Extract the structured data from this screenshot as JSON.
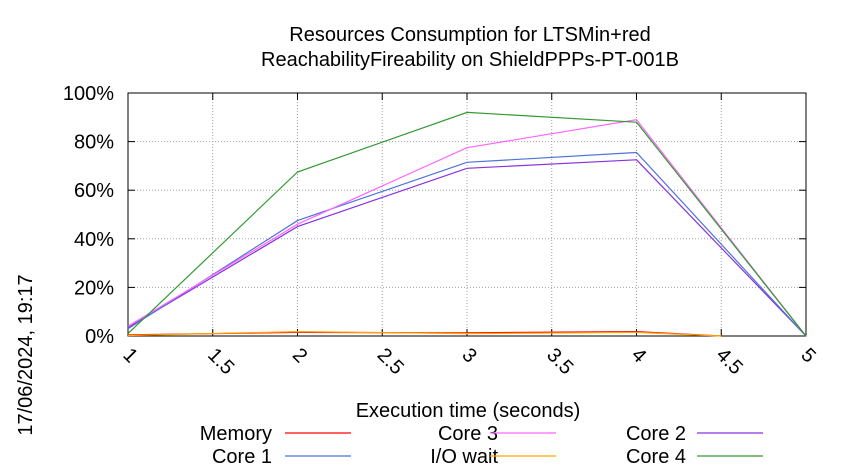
{
  "chart_data": {
    "type": "line",
    "title": [
      "Resources Consumption for LTSMin+red",
      "ReachabilityFireability on ShieldPPPs-PT-001B"
    ],
    "xlabel": "Execution time (seconds)",
    "ylabel": "",
    "side_label": "17/06/2024, 19:17",
    "xlim": [
      1,
      5
    ],
    "ylim": [
      0,
      100
    ],
    "x_ticks": [
      1,
      1.5,
      2,
      2.5,
      3,
      3.5,
      4,
      4.5,
      5
    ],
    "x_tick_labels": [
      "1",
      "1.5",
      "2",
      "2.5",
      "3",
      "3.5",
      "4",
      "4.5",
      "5"
    ],
    "y_ticks": [
      0,
      20,
      40,
      60,
      80,
      100
    ],
    "y_tick_labels": [
      "0%",
      "20%",
      "40%",
      "60%",
      "80%",
      "100%"
    ],
    "grid": true,
    "legend_position": "bottom",
    "series": [
      {
        "name": "Memory",
        "color": "#ff0000",
        "x": [
          1,
          2,
          3,
          4,
          4.5
        ],
        "y": [
          0.5,
          1.5,
          1.3,
          1.8,
          0
        ]
      },
      {
        "name": "Core 1",
        "color": "#4d73d9",
        "x": [
          1,
          2,
          3,
          4,
          5
        ],
        "y": [
          3,
          47.5,
          71.5,
          75.5,
          0
        ]
      },
      {
        "name": "Core 3",
        "color": "#ff66ff",
        "x": [
          1,
          2,
          3,
          4,
          5
        ],
        "y": [
          4,
          46,
          77.5,
          89,
          0
        ]
      },
      {
        "name": "I/O wait",
        "color": "#ffa500",
        "x": [
          1,
          2,
          3,
          4,
          4.5
        ],
        "y": [
          0.2,
          1.8,
          1.0,
          1.5,
          0
        ]
      },
      {
        "name": "Core 2",
        "color": "#8833dd",
        "x": [
          1,
          2,
          3,
          4,
          5
        ],
        "y": [
          3.5,
          45,
          69,
          72.5,
          0
        ]
      },
      {
        "name": "Core 4",
        "color": "#339933",
        "x": [
          1,
          2,
          3,
          4,
          5
        ],
        "y": [
          1,
          67.5,
          92,
          88,
          0
        ]
      }
    ]
  }
}
